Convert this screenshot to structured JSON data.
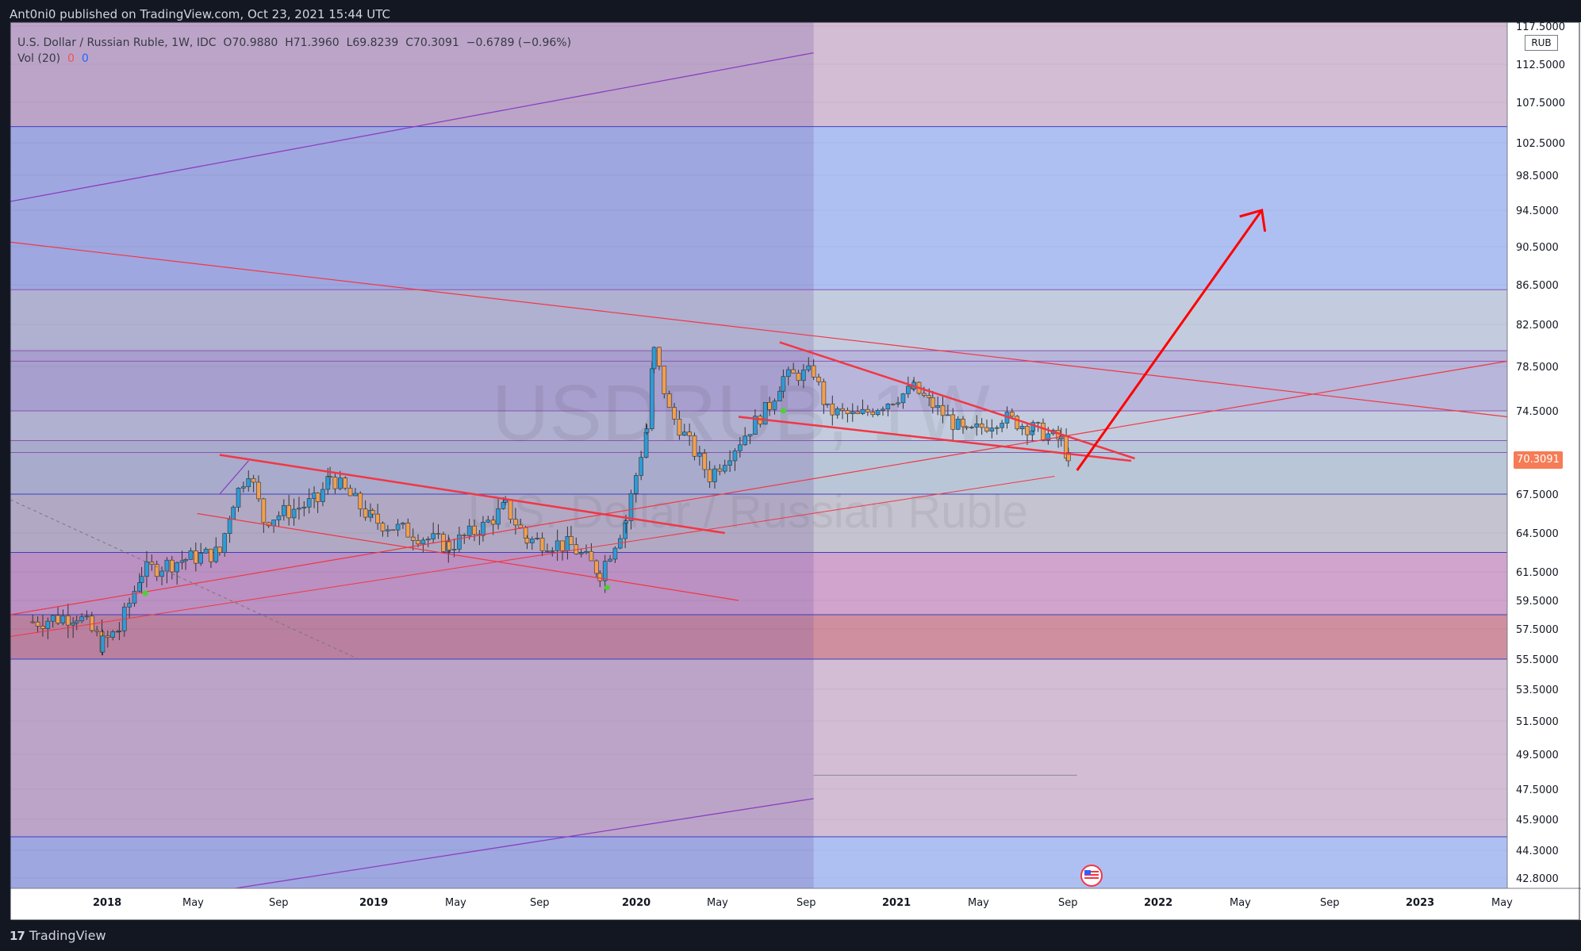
{
  "header": {
    "publisher_line": "Ant0ni0 published on TradingView.com, Oct 23, 2021 15:44 UTC"
  },
  "footer": {
    "brand": "TradingView"
  },
  "legend": {
    "symbol": "U.S. Dollar / Russian Ruble, 1W, IDC",
    "open": "O70.9880",
    "high": "H71.3960",
    "low": "L69.8239",
    "close": "C70.3091",
    "change": "−0.6789 (−0.96%)",
    "vol_label": "Vol (20)",
    "vol_val1": "0",
    "vol_val2": "0"
  },
  "watermark": {
    "ticker": "USDRUB, 1W",
    "name": "U.S. Dollar / Russian Ruble"
  },
  "price_axis": {
    "currency": "RUB",
    "current_price": "70.3091",
    "labels": [
      "117.5000",
      "112.5000",
      "107.5000",
      "102.5000",
      "98.5000",
      "94.5000",
      "90.5000",
      "86.5000",
      "82.5000",
      "78.5000",
      "74.5000",
      "67.5000",
      "64.5000",
      "61.5000",
      "59.5000",
      "57.5000",
      "55.5000",
      "53.5000",
      "51.5000",
      "49.5000",
      "47.5000",
      "45.9000",
      "44.3000",
      "42.8000"
    ]
  },
  "time_axis": {
    "labels": [
      {
        "text": "2018",
        "bold": true
      },
      {
        "text": "May",
        "bold": false
      },
      {
        "text": "Sep",
        "bold": false
      },
      {
        "text": "2019",
        "bold": true
      },
      {
        "text": "May",
        "bold": false
      },
      {
        "text": "Sep",
        "bold": false
      },
      {
        "text": "2020",
        "bold": true
      },
      {
        "text": "May",
        "bold": false
      },
      {
        "text": "Sep",
        "bold": false
      },
      {
        "text": "2021",
        "bold": true
      },
      {
        "text": "May",
        "bold": false
      },
      {
        "text": "Sep",
        "bold": false
      },
      {
        "text": "2022",
        "bold": true
      },
      {
        "text": "May",
        "bold": false
      },
      {
        "text": "Sep",
        "bold": false
      },
      {
        "text": "2023",
        "bold": true
      },
      {
        "text": "May",
        "bold": false
      }
    ]
  },
  "colors": {
    "up": "#26a69a",
    "down": "#ef5350",
    "trendline": "#f23645",
    "arrow": "#ff0000",
    "bg_band_pink": "#d3bdd4",
    "bg_band_blue": "#aec0f2",
    "bg_band_red": "#cf8f9f"
  },
  "chart_data": {
    "type": "candlestick",
    "symbol": "USDRUB",
    "interval": "1W",
    "x_range": [
      "2017-11",
      "2023-06"
    ],
    "y_range": [
      42.0,
      118.0
    ],
    "last_close": 70.3091,
    "price_path_keypoints": [
      {
        "date": "2017-11-15",
        "close": 58.0
      },
      {
        "date": "2018-01-15",
        "close": 58.5
      },
      {
        "date": "2018-02-20",
        "close": 56.5
      },
      {
        "date": "2018-03-15",
        "close": 57.5
      },
      {
        "date": "2018-04-15",
        "close": 61.5
      },
      {
        "date": "2018-06-15",
        "close": 62.5
      },
      {
        "date": "2018-08-01",
        "close": 63.0
      },
      {
        "date": "2018-08-20",
        "close": 67.0
      },
      {
        "date": "2018-09-10",
        "close": 69.5
      },
      {
        "date": "2018-10-01",
        "close": 65.5
      },
      {
        "date": "2018-12-15",
        "close": 67.0
      },
      {
        "date": "2019-01-01",
        "close": 69.0
      },
      {
        "date": "2019-03-01",
        "close": 65.5
      },
      {
        "date": "2019-06-15",
        "close": 63.5
      },
      {
        "date": "2019-08-01",
        "close": 65.0
      },
      {
        "date": "2019-09-01",
        "close": 66.5
      },
      {
        "date": "2019-10-01",
        "close": 64.0
      },
      {
        "date": "2019-12-01",
        "close": 63.5
      },
      {
        "date": "2020-01-10",
        "close": 61.5
      },
      {
        "date": "2020-02-15",
        "close": 65.5
      },
      {
        "date": "2020-03-15",
        "close": 73.0
      },
      {
        "date": "2020-03-25",
        "close": 80.0
      },
      {
        "date": "2020-04-15",
        "close": 74.5
      },
      {
        "date": "2020-06-10",
        "close": 69.0
      },
      {
        "date": "2020-07-15",
        "close": 71.5
      },
      {
        "date": "2020-09-01",
        "close": 75.0
      },
      {
        "date": "2020-09-20",
        "close": 77.5
      },
      {
        "date": "2020-11-01",
        "close": 78.0
      },
      {
        "date": "2020-11-20",
        "close": 74.5
      },
      {
        "date": "2021-01-01",
        "close": 74.0
      },
      {
        "date": "2021-03-20",
        "close": 76.5
      },
      {
        "date": "2021-04-15",
        "close": 75.0
      },
      {
        "date": "2021-06-01",
        "close": 72.5
      },
      {
        "date": "2021-07-20",
        "close": 74.0
      },
      {
        "date": "2021-09-01",
        "close": 73.0
      },
      {
        "date": "2021-10-10",
        "close": 72.0
      },
      {
        "date": "2021-10-23",
        "close": 70.3091
      }
    ],
    "horizontal_levels": [
      104.5,
      86.0,
      80.0,
      79.0,
      74.5,
      72.0,
      71.0,
      67.5,
      63.0,
      58.5,
      55.5,
      45.0
    ],
    "projection": {
      "from": "2021-11-01",
      "to": "2022-07-15",
      "target": 94.5
    }
  }
}
